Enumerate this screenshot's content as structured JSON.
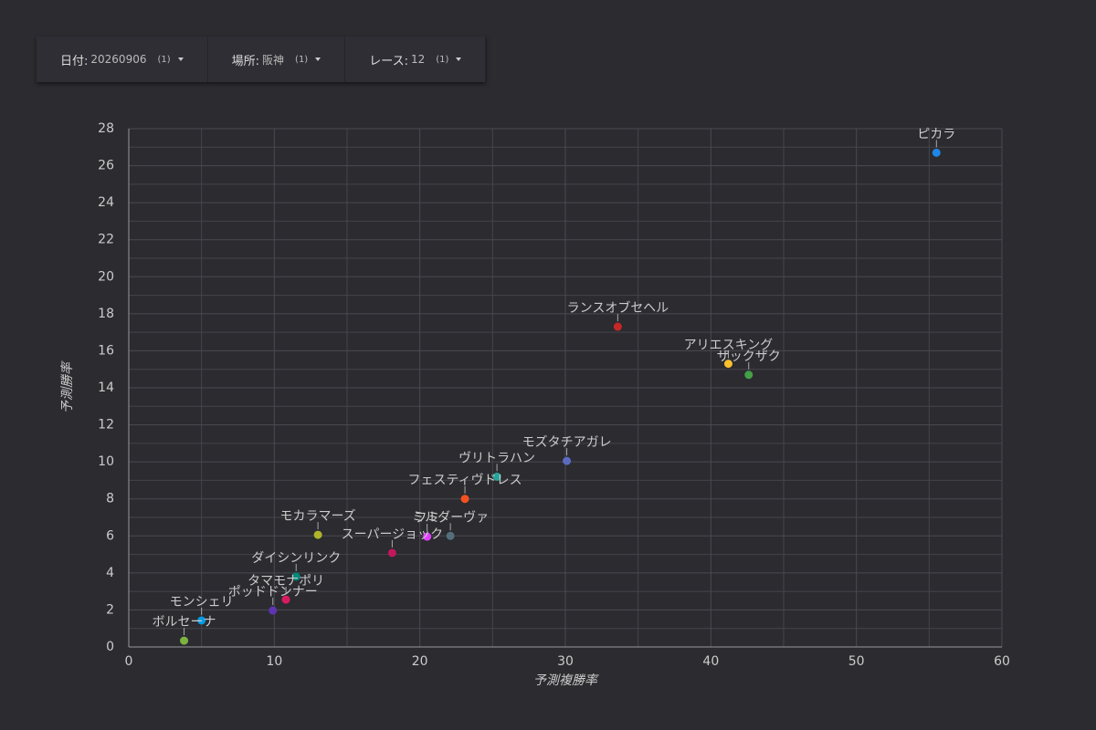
{
  "filters": [
    {
      "label": "日付:",
      "value": "20260906",
      "count": "(1)"
    },
    {
      "label": "場所:",
      "value": "阪神",
      "count": "(1)"
    },
    {
      "label": "レース:",
      "value": "12",
      "count": "(1)"
    }
  ],
  "chart_data": {
    "type": "scatter",
    "x_label": "予測複勝率",
    "y_label": "予測勝率",
    "xlim": [
      0,
      60
    ],
    "xticks": [
      0,
      10,
      20,
      30,
      40,
      50,
      60
    ],
    "ylim": [
      0,
      28
    ],
    "yticks": [
      0,
      2,
      4,
      6,
      8,
      10,
      12,
      14,
      16,
      18,
      20,
      22,
      24,
      26,
      28
    ],
    "grid": true,
    "minor_grid": true,
    "series": [
      {
        "name": "ピカラ",
        "color": "#1e88e5",
        "x": [
          55.5
        ],
        "values": [
          26.7
        ]
      },
      {
        "name": "ランスオブセヘル",
        "color": "#c62828",
        "x": [
          33.6
        ],
        "values": [
          17.3
        ]
      },
      {
        "name": "アリエスキング",
        "color": "#fbc02d",
        "x": [
          41.2
        ],
        "values": [
          15.3
        ]
      },
      {
        "name": "ザックザク",
        "color": "#43a047",
        "x": [
          42.6
        ],
        "values": [
          14.7
        ]
      },
      {
        "name": "モズタチアガレ",
        "color": "#5c6bc0",
        "x": [
          30.1
        ],
        "values": [
          10.05
        ]
      },
      {
        "name": "ヴリトラハン",
        "color": "#26a69a",
        "x": [
          25.3
        ],
        "values": [
          9.2
        ]
      },
      {
        "name": "フェスティヴドレス",
        "color": "#f4511e",
        "x": [
          23.1
        ],
        "values": [
          8.0
        ]
      },
      {
        "name": "モカラマーズ",
        "color": "#afb42b",
        "x": [
          13.0
        ],
        "values": [
          6.06
        ]
      },
      {
        "name": "フミ",
        "color": "#e040fb",
        "x": [
          20.5
        ],
        "values": [
          5.96
        ]
      },
      {
        "name": "ミルダーヴァ",
        "color": "#546e7a",
        "x": [
          22.1
        ],
        "values": [
          6.0
        ]
      },
      {
        "name": "スーパージョック",
        "color": "#c2185b",
        "x": [
          18.1
        ],
        "values": [
          5.08
        ]
      },
      {
        "name": "ダイシンリンク",
        "color": "#00897b",
        "x": [
          11.5
        ],
        "values": [
          3.8
        ]
      },
      {
        "name": "タマモナポリ",
        "color": "#d81b60",
        "x": [
          10.8
        ],
        "values": [
          2.56
        ]
      },
      {
        "name": "ポッドドンナー",
        "color": "#5e35b1",
        "x": [
          9.9
        ],
        "values": [
          1.97
        ]
      },
      {
        "name": "モンシェリ",
        "color": "#039be5",
        "x": [
          5.0
        ],
        "values": [
          1.43
        ]
      },
      {
        "name": "ボルセーナ",
        "color": "#7cb342",
        "x": [
          3.8
        ],
        "values": [
          0.34
        ]
      }
    ]
  }
}
